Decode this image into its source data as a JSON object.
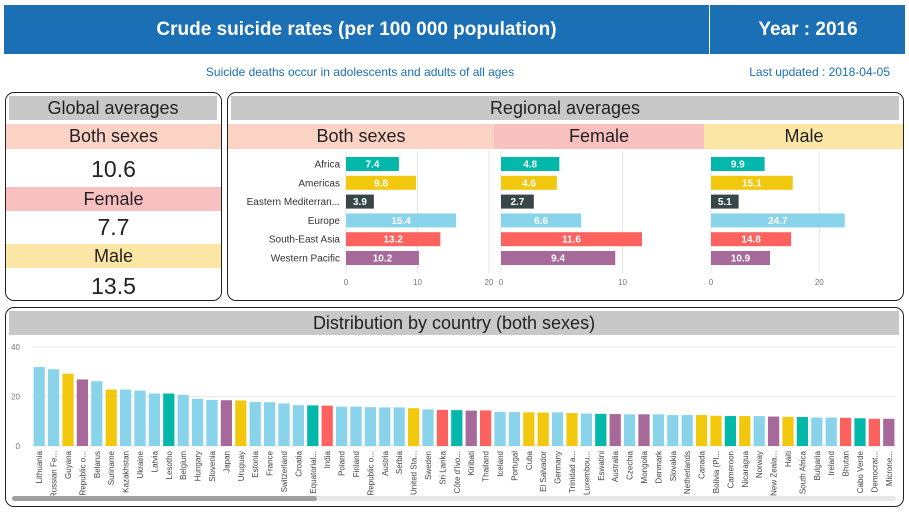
{
  "header": {
    "title": "Crude suicide rates (per 100 000 population)",
    "year": "Year : 2016"
  },
  "subtitle": "Suicide deaths occur in adolescents and adults of all ages",
  "last_updated": "Last updated : 2018-04-05",
  "global": {
    "title": "Global averages",
    "both_label": "Both sexes",
    "both_value": "10.6",
    "female_label": "Female",
    "female_value": "7.7",
    "male_label": "Male",
    "male_value": "13.5"
  },
  "regional": {
    "title": "Regional averages",
    "both_label": "Both sexes",
    "female_label": "Female",
    "male_label": "Male"
  },
  "distribution": {
    "title": "Distribution by country (both sexes)"
  },
  "colors": {
    "teal": "#01b8aa",
    "yellow": "#f2c80f",
    "dark": "#374649",
    "light_blue": "#8ad4eb",
    "red": "#fd625e",
    "purple": "#a66999"
  },
  "chart_data": [
    {
      "type": "bar",
      "orientation": "horizontal",
      "title": "Both sexes",
      "categories": [
        "Africa",
        "Americas",
        "Eastern Mediterran...",
        "Europe",
        "South-East Asia",
        "Western Pacific"
      ],
      "values": [
        7.4,
        9.8,
        3.9,
        15.4,
        13.2,
        10.2
      ],
      "colors": [
        "#01b8aa",
        "#f2c80f",
        "#374649",
        "#8ad4eb",
        "#fd625e",
        "#a66999"
      ],
      "xlim": [
        0,
        20
      ],
      "xticks": [
        0,
        10,
        20
      ]
    },
    {
      "type": "bar",
      "orientation": "horizontal",
      "title": "Female",
      "categories": [
        "Africa",
        "Americas",
        "Eastern Mediterran...",
        "Europe",
        "South-East Asia",
        "Western Pacific"
      ],
      "values": [
        4.8,
        4.6,
        2.7,
        6.6,
        11.6,
        9.4
      ],
      "colors": [
        "#01b8aa",
        "#f2c80f",
        "#374649",
        "#8ad4eb",
        "#fd625e",
        "#a66999"
      ],
      "xlim": [
        0,
        13
      ],
      "xticks": [
        0,
        10
      ]
    },
    {
      "type": "bar",
      "orientation": "horizontal",
      "title": "Male",
      "categories": [
        "Africa",
        "Americas",
        "Eastern Mediterran...",
        "Europe",
        "South-East Asia",
        "Western Pacific"
      ],
      "values": [
        9.9,
        15.1,
        5.1,
        24.7,
        14.8,
        10.9
      ],
      "colors": [
        "#01b8aa",
        "#f2c80f",
        "#374649",
        "#8ad4eb",
        "#fd625e",
        "#a66999"
      ],
      "xlim": [
        0,
        29
      ],
      "xticks": [
        0,
        20
      ]
    },
    {
      "type": "bar",
      "title": "Distribution by country (both sexes)",
      "ylim": [
        0,
        40
      ],
      "yticks": [
        0,
        20,
        40
      ],
      "categories": [
        "Lithuania",
        "Russian Fe...",
        "Guyana",
        "Republic o...",
        "Belarus",
        "Suriname",
        "Kazakhstan",
        "Ukraine",
        "Latvia",
        "Lesotho",
        "Belgium",
        "Hungary",
        "Slovenia",
        "Japan",
        "Uruguay",
        "Estonia",
        "France",
        "Switzerland",
        "Croatia",
        "Equatorial...",
        "India",
        "Poland",
        "Finland",
        "Republic o...",
        "Austria",
        "Serbia",
        "United Sta...",
        "Sweden",
        "Sri Lanka",
        "Côte d'Ivo...",
        "Kiribati",
        "Thailand",
        "Iceland",
        "Portugal",
        "Cuba",
        "El Salvador",
        "Germany",
        "Trinidad a...",
        "Luxembou...",
        "Eswatini",
        "Australia",
        "Czechia",
        "Mongolia",
        "Denmark",
        "Slovakia",
        "Netherlands",
        "Canada",
        "Bolivia (Pl...",
        "Cameroon",
        "Nicaragua",
        "Norway",
        "New Zeala...",
        "Haiti",
        "South Africa",
        "Bulgaria",
        "Ireland",
        "Bhutan",
        "Cabo Verde",
        "Democrat...",
        "Microne..."
      ],
      "values": [
        31.9,
        31.0,
        29.2,
        26.9,
        26.2,
        22.8,
        22.8,
        22.4,
        21.2,
        21.2,
        20.7,
        19.1,
        18.6,
        18.5,
        18.4,
        17.8,
        17.7,
        17.2,
        16.5,
        16.4,
        16.3,
        15.9,
        15.9,
        15.7,
        15.6,
        15.6,
        15.3,
        14.8,
        14.6,
        14.5,
        14.3,
        14.4,
        13.8,
        13.7,
        13.6,
        13.5,
        13.6,
        13.3,
        13.1,
        13.0,
        12.9,
        12.8,
        12.8,
        12.8,
        12.5,
        12.5,
        12.5,
        12.2,
        12.1,
        12.1,
        12.1,
        11.9,
        11.8,
        11.7,
        11.5,
        11.5,
        11.4,
        11.2,
        11.0,
        11.0
      ],
      "colors": [
        "#8ad4eb",
        "#8ad4eb",
        "#f2c80f",
        "#a66999",
        "#8ad4eb",
        "#f2c80f",
        "#8ad4eb",
        "#8ad4eb",
        "#8ad4eb",
        "#01b8aa",
        "#8ad4eb",
        "#8ad4eb",
        "#8ad4eb",
        "#a66999",
        "#f2c80f",
        "#8ad4eb",
        "#8ad4eb",
        "#8ad4eb",
        "#8ad4eb",
        "#01b8aa",
        "#fd625e",
        "#8ad4eb",
        "#8ad4eb",
        "#8ad4eb",
        "#8ad4eb",
        "#8ad4eb",
        "#f2c80f",
        "#8ad4eb",
        "#fd625e",
        "#01b8aa",
        "#a66999",
        "#fd625e",
        "#8ad4eb",
        "#8ad4eb",
        "#f2c80f",
        "#f2c80f",
        "#8ad4eb",
        "#f2c80f",
        "#8ad4eb",
        "#01b8aa",
        "#a66999",
        "#8ad4eb",
        "#a66999",
        "#8ad4eb",
        "#8ad4eb",
        "#8ad4eb",
        "#f2c80f",
        "#f2c80f",
        "#01b8aa",
        "#f2c80f",
        "#8ad4eb",
        "#a66999",
        "#f2c80f",
        "#01b8aa",
        "#8ad4eb",
        "#8ad4eb",
        "#fd625e",
        "#01b8aa",
        "#fd625e",
        "#a66999"
      ]
    }
  ]
}
